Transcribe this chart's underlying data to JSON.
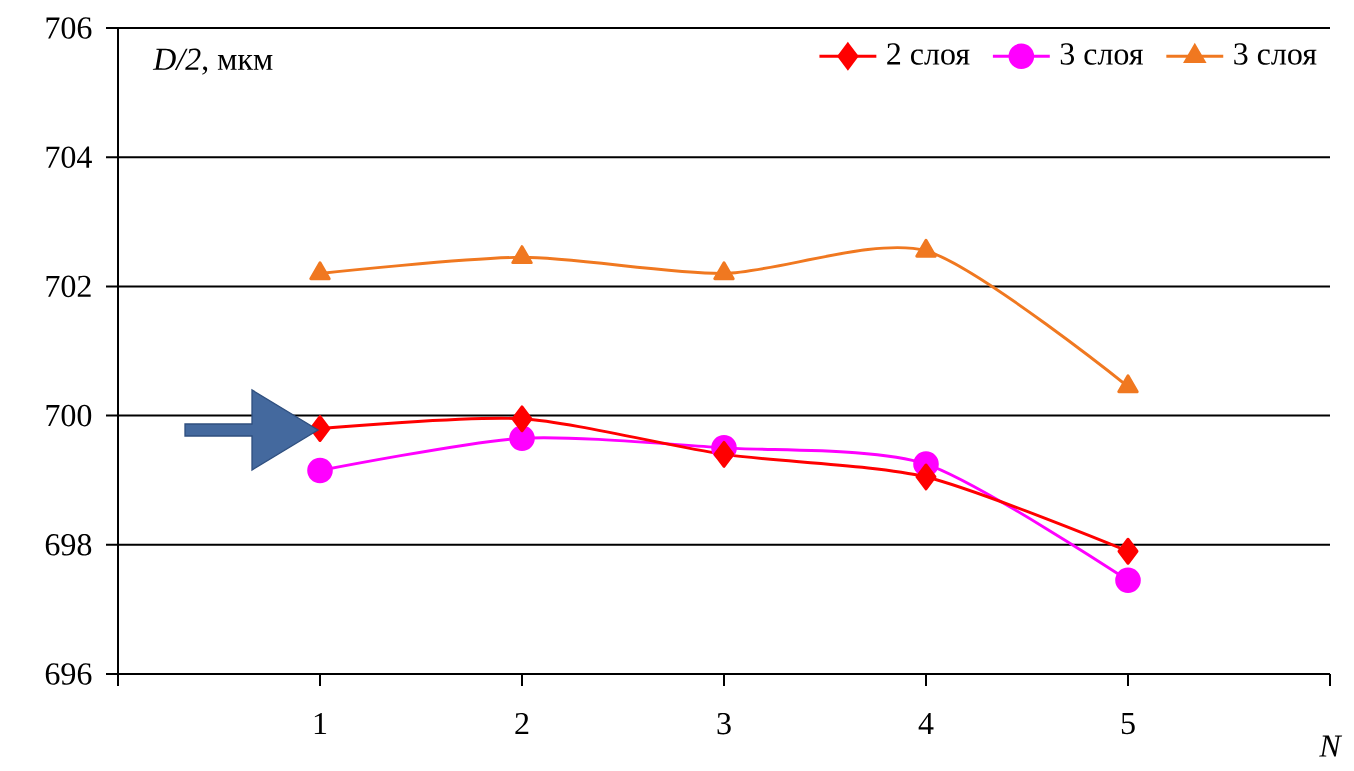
{
  "chart_data": {
    "type": "line",
    "ylabel": "*D/2*, мкм",
    "xlabel": "N",
    "x": [
      1,
      2,
      3,
      4,
      5
    ],
    "series": [
      {
        "name": "2 слоя",
        "color": "#ff0000",
        "marker": "diamond",
        "values": [
          699.8,
          699.95,
          699.4,
          699.05,
          697.9
        ]
      },
      {
        "name": "3 слоя",
        "color": "#ff00ff",
        "marker": "circle",
        "values": [
          699.15,
          699.65,
          699.5,
          699.25,
          697.45
        ]
      },
      {
        "name": "3 слоя",
        "color": "#f07820",
        "marker": "triangle",
        "values": [
          702.2,
          702.45,
          702.2,
          702.55,
          700.45
        ]
      }
    ],
    "xlim": [
      0,
      6
    ],
    "xticks": [
      {
        "value": 0,
        "label": null
      },
      1,
      2,
      3,
      4,
      5,
      {
        "value": 6,
        "label": null
      }
    ],
    "ylim": [
      696,
      706
    ],
    "yticks": [
      696,
      698,
      700,
      702,
      704,
      706
    ],
    "grid": "y",
    "legend": "top right",
    "line_style": "solid"
  }
}
